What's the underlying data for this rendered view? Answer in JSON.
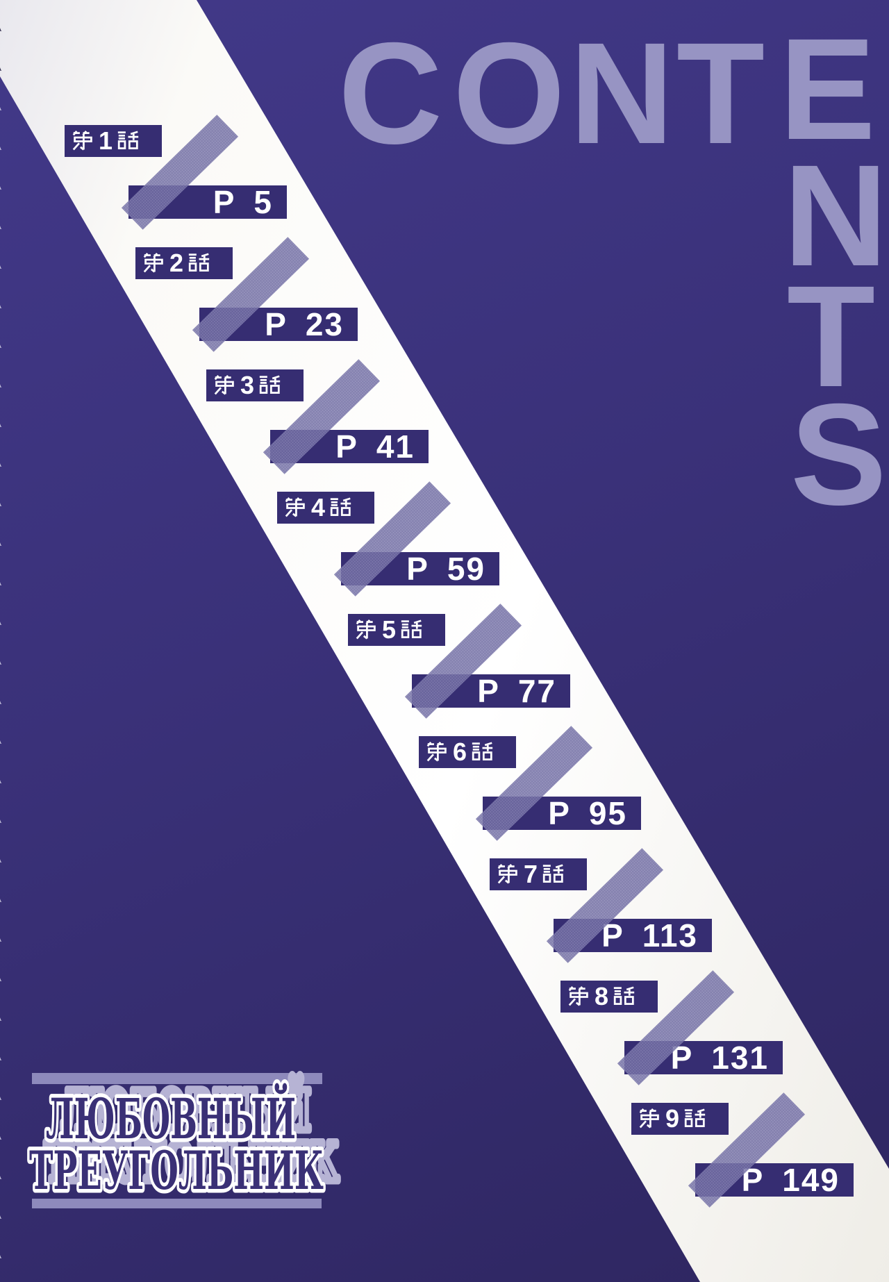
{
  "page_title": "CONTENTS",
  "wordmark": {
    "top_letters": [
      "C",
      "O",
      "N",
      "T",
      "E"
    ],
    "column_letters": [
      "N",
      "T",
      "S"
    ]
  },
  "entries": [
    {
      "chapter": "第1話",
      "chapter_digit": "1",
      "page_label": "P 5"
    },
    {
      "chapter": "第2話",
      "chapter_digit": "2",
      "page_label": "P 23"
    },
    {
      "chapter": "第3話",
      "chapter_digit": "3",
      "page_label": "P 41"
    },
    {
      "chapter": "第4話",
      "chapter_digit": "4",
      "page_label": "P 59"
    },
    {
      "chapter": "第5話",
      "chapter_digit": "5",
      "page_label": "P 77"
    },
    {
      "chapter": "第6話",
      "chapter_digit": "6",
      "page_label": "P 95"
    },
    {
      "chapter": "第7話",
      "chapter_digit": "7",
      "page_label": "P 113"
    },
    {
      "chapter": "第8話",
      "chapter_digit": "8",
      "page_label": "P 131"
    },
    {
      "chapter": "第9話",
      "chapter_digit": "9",
      "page_label": "P 149"
    }
  ],
  "footer_title": {
    "line1": "ЛЮБОВНЫЙ",
    "line2": "ТРЕУГОЛЬНИК"
  },
  "binding": {
    "hole_count": 32
  },
  "colors": {
    "background": "#3a3179",
    "background_dark_corner": "#2e2660",
    "stripe_white": "#fbfaf7",
    "box": "#362d72",
    "ribbon": "#8d89bb",
    "wordmark_letters": "#9794c3",
    "box_text": "#ffffff",
    "footer_fill": "#3a3076",
    "footer_outline": "#ffffff",
    "footer_ghost": "#b6b3d4",
    "decor_bar": "#8e8abc"
  }
}
